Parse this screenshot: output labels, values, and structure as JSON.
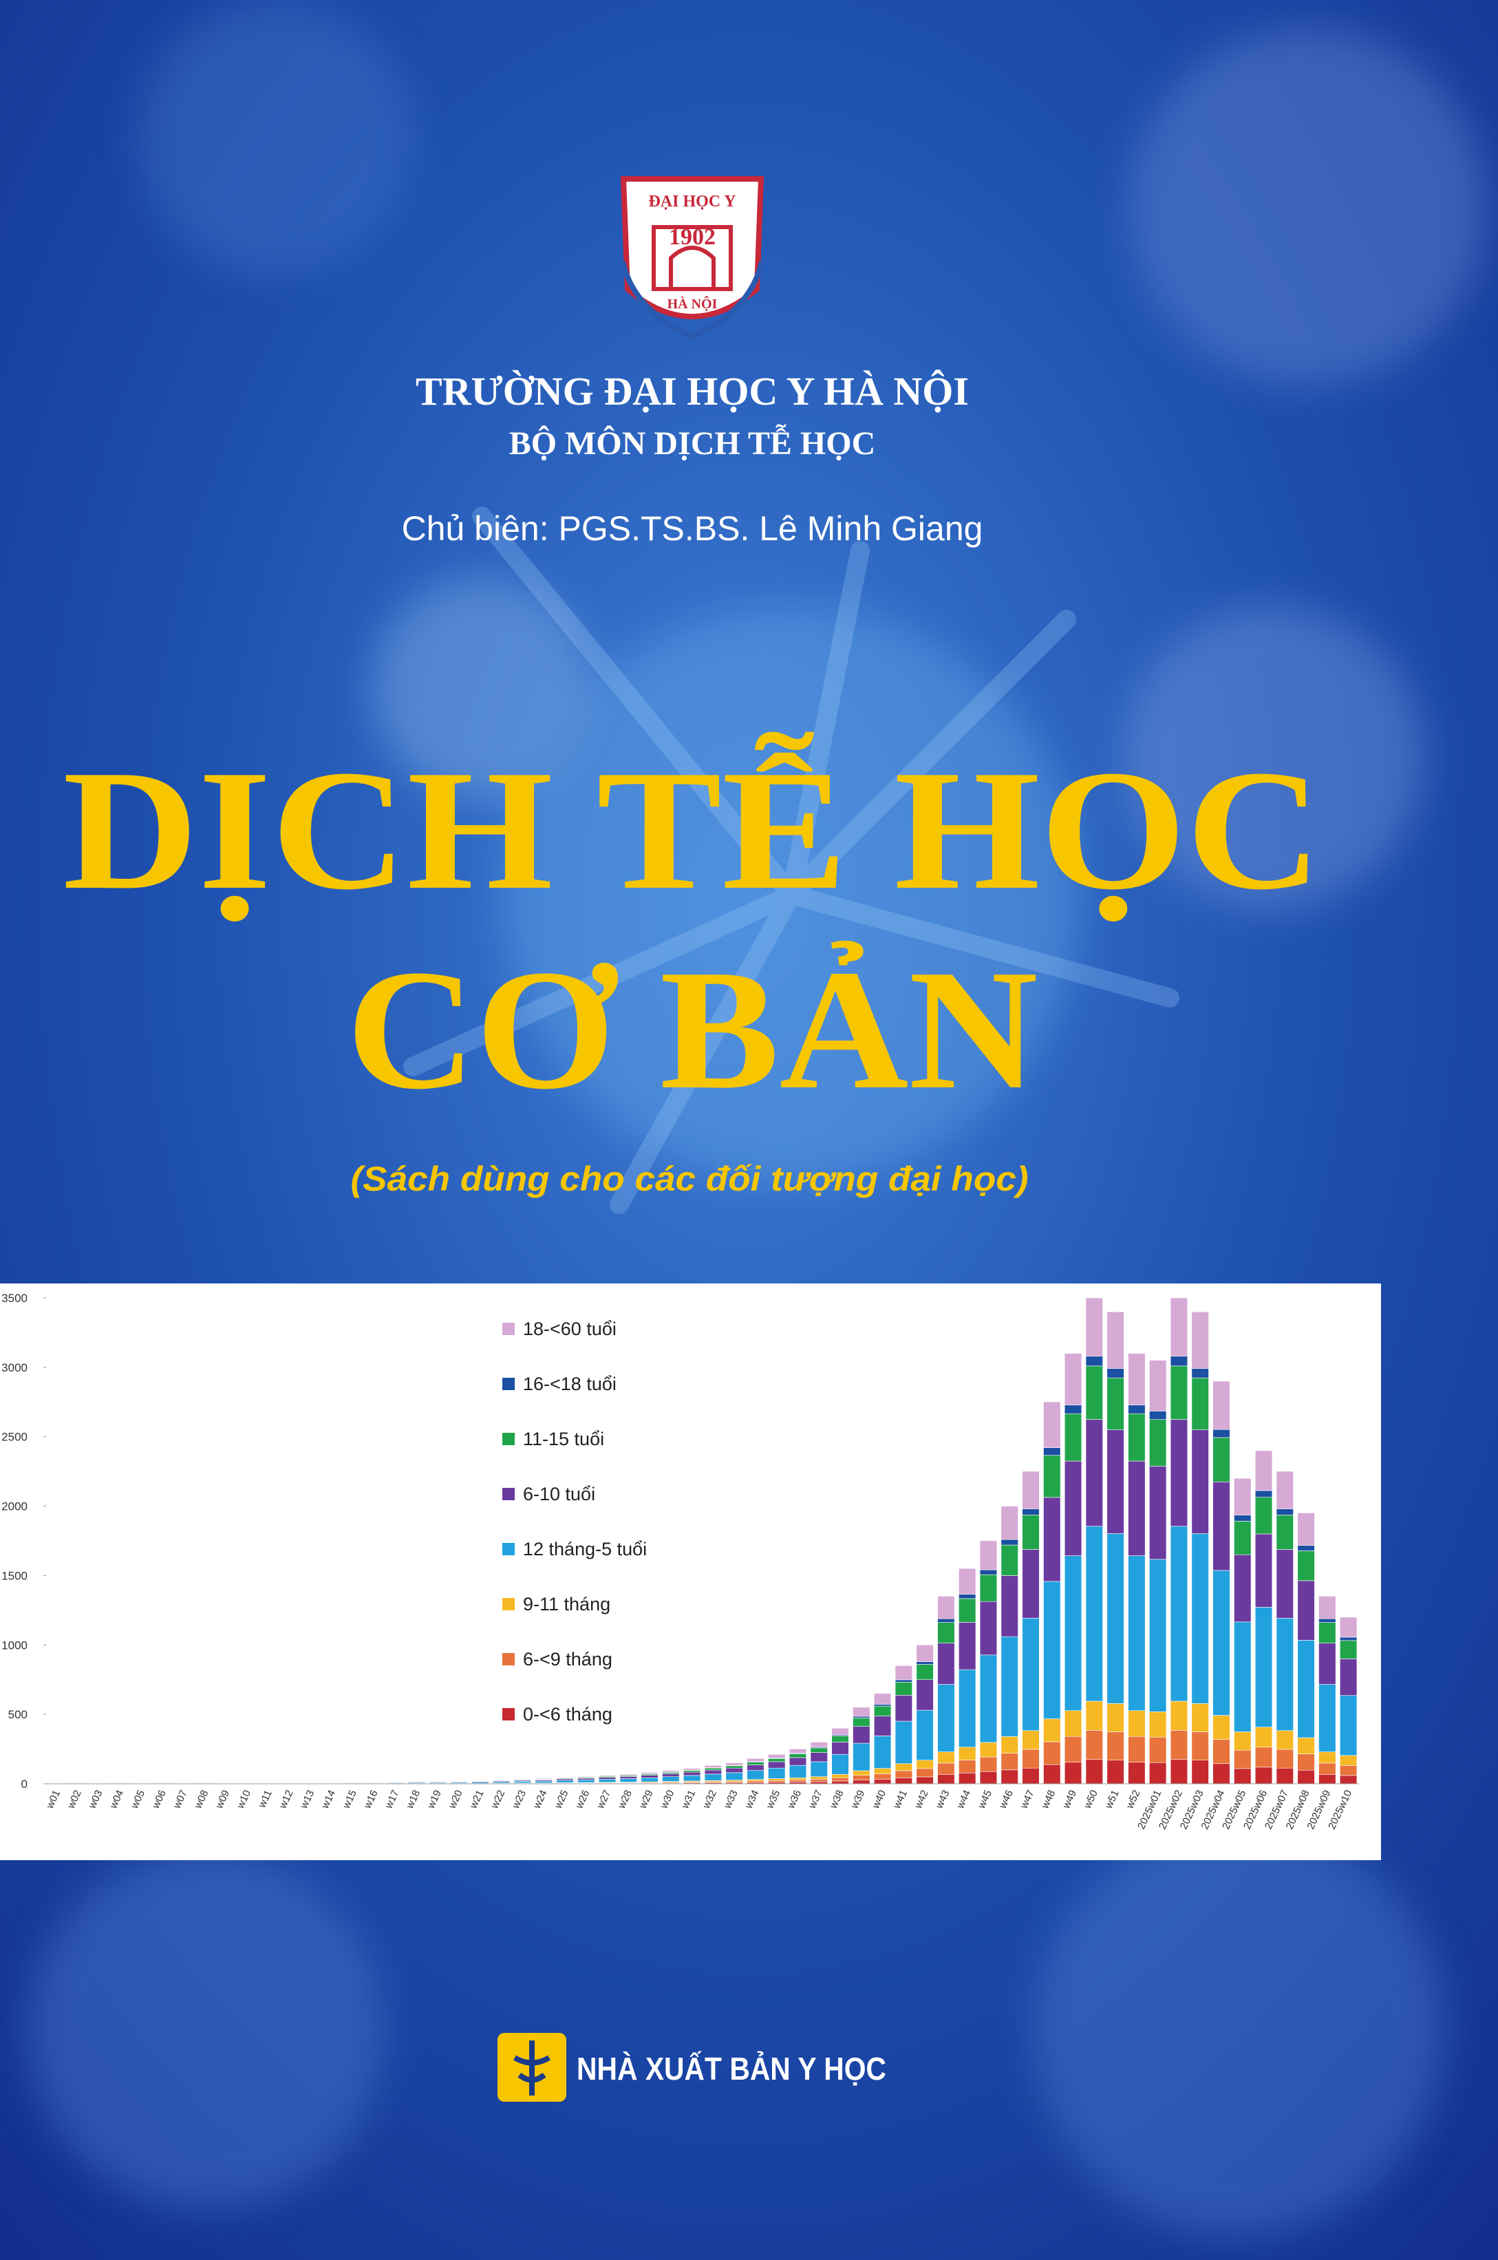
{
  "header": {
    "logo_top": "ĐẠI HỌC Y",
    "logo_year": "1902",
    "logo_bottom": "HÀ NỘI",
    "institution": "TRƯỜNG ĐẠI HỌC Y HÀ NỘI",
    "department": "BỘ MÔN DỊCH TỄ HỌC",
    "editor": "Chủ biên: PGS.TS.BS. Lê Minh Giang"
  },
  "title": {
    "line1": "DỊCH TỄ HỌC",
    "line2": "CƠ BẢN",
    "subtitle": "(Sách dùng cho các đối tượng đại học)"
  },
  "publisher": "NHÀ XUẤT BẢN Y HỌC",
  "chart_data": {
    "type": "stacked_bar",
    "categories": [
      "w01",
      "w02",
      "w03",
      "w04",
      "w05",
      "w06",
      "w07",
      "w08",
      "w09",
      "w10",
      "w11",
      "w12",
      "w13",
      "w14",
      "w15",
      "w16",
      "w17",
      "w18",
      "w19",
      "w20",
      "w21",
      "w22",
      "w23",
      "w24",
      "w25",
      "w26",
      "w27",
      "w28",
      "w29",
      "w30",
      "w31",
      "w32",
      "w33",
      "w34",
      "w35",
      "w36",
      "w37",
      "w38",
      "w39",
      "w40",
      "w41",
      "w42",
      "w43",
      "w44",
      "w45",
      "w46",
      "w47",
      "w48",
      "w49",
      "w50",
      "w51",
      "w52",
      "2025w01",
      "2025w02",
      "2025w03",
      "2025w04",
      "2025w05",
      "2025w06",
      "2025w07",
      "2025w08",
      "2025w09",
      "2025w10"
    ],
    "ylim": [
      0,
      3500
    ],
    "yticks": [
      0,
      500,
      1000,
      1500,
      2000,
      2500,
      3000,
      3500
    ],
    "series": [
      {
        "name": "0-<6 tháng",
        "color": "#c62a2f",
        "values": [
          0,
          0,
          0,
          0,
          0,
          0,
          0,
          0,
          0,
          0,
          0,
          0,
          0,
          0,
          1,
          1,
          1,
          1,
          1,
          1,
          1,
          1,
          2,
          2,
          2,
          3,
          3,
          4,
          4,
          5,
          6,
          7,
          8,
          9,
          11,
          13,
          15,
          20,
          28,
          33,
          43,
          50,
          68,
          78,
          88,
          100,
          113,
          138,
          155,
          175,
          170,
          155,
          153,
          175,
          170,
          145,
          110,
          120,
          113,
          98,
          68,
          60
        ]
      },
      {
        "name": "6-<9 tháng",
        "color": "#e8733b",
        "values": [
          0,
          0,
          0,
          0,
          0,
          0,
          0,
          0,
          0,
          0,
          0,
          0,
          0,
          0,
          1,
          1,
          1,
          1,
          1,
          1,
          1,
          2,
          2,
          2,
          3,
          3,
          4,
          4,
          5,
          6,
          7,
          8,
          9,
          11,
          13,
          15,
          18,
          24,
          33,
          39,
          51,
          60,
          81,
          93,
          105,
          120,
          135,
          165,
          186,
          210,
          204,
          186,
          183,
          210,
          204,
          174,
          132,
          144,
          135,
          117,
          81,
          72
        ]
      },
      {
        "name": "9-11 tháng",
        "color": "#f6b823",
        "values": [
          0,
          0,
          0,
          0,
          0,
          0,
          0,
          0,
          0,
          0,
          0,
          0,
          0,
          0,
          1,
          1,
          1,
          1,
          1,
          1,
          1,
          2,
          2,
          2,
          3,
          3,
          4,
          4,
          5,
          6,
          7,
          8,
          9,
          11,
          13,
          15,
          18,
          24,
          33,
          39,
          51,
          60,
          81,
          93,
          105,
          120,
          135,
          165,
          186,
          210,
          204,
          186,
          183,
          210,
          204,
          174,
          132,
          144,
          135,
          117,
          81,
          72
        ]
      },
      {
        "name": "12 tháng-5 tuổi",
        "color": "#21a2de",
        "values": [
          1,
          2,
          1,
          2,
          1,
          2,
          1,
          2,
          2,
          2,
          2,
          2,
          2,
          3,
          4,
          4,
          5,
          6,
          6,
          7,
          9,
          10,
          12,
          14,
          16,
          19,
          22,
          25,
          29,
          34,
          40,
          47,
          54,
          65,
          76,
          90,
          108,
          144,
          198,
          234,
          306,
          360,
          486,
          558,
          630,
          720,
          810,
          990,
          1116,
          1260,
          1224,
          1116,
          1098,
          1260,
          1224,
          1044,
          792,
          864,
          810,
          702,
          486,
          432
        ]
      },
      {
        "name": "6-10 tuổi",
        "color": "#6b3a9f",
        "values": [
          1,
          1,
          1,
          1,
          1,
          1,
          1,
          1,
          1,
          2,
          1,
          1,
          1,
          2,
          2,
          3,
          3,
          4,
          4,
          4,
          5,
          6,
          7,
          8,
          10,
          11,
          13,
          15,
          18,
          21,
          24,
          29,
          33,
          40,
          46,
          55,
          66,
          88,
          121,
          143,
          187,
          220,
          297,
          341,
          385,
          440,
          495,
          605,
          682,
          770,
          748,
          682,
          671,
          770,
          748,
          638,
          484,
          528,
          495,
          429,
          297,
          264
        ]
      },
      {
        "name": "11-15 tuổi",
        "color": "#20a54b",
        "values": [
          0,
          0,
          0,
          0,
          0,
          0,
          0,
          0,
          0,
          0,
          1,
          1,
          1,
          1,
          1,
          1,
          2,
          2,
          2,
          2,
          3,
          3,
          4,
          4,
          5,
          6,
          7,
          8,
          9,
          10,
          12,
          14,
          17,
          20,
          23,
          28,
          33,
          44,
          61,
          72,
          94,
          110,
          149,
          171,
          193,
          220,
          248,
          303,
          341,
          385,
          374,
          341,
          336,
          385,
          374,
          319,
          242,
          264,
          248,
          215,
          149,
          132
        ]
      },
      {
        "name": "16-<18 tuổi",
        "color": "#1b50a2",
        "values": [
          0,
          0,
          0,
          0,
          0,
          0,
          0,
          0,
          0,
          0,
          0,
          0,
          0,
          0,
          0,
          0,
          0,
          0,
          0,
          0,
          0,
          1,
          1,
          1,
          1,
          1,
          1,
          1,
          2,
          2,
          2,
          3,
          3,
          4,
          4,
          5,
          6,
          8,
          11,
          13,
          17,
          20,
          27,
          31,
          35,
          40,
          45,
          55,
          62,
          70,
          68,
          62,
          61,
          70,
          68,
          58,
          44,
          48,
          45,
          39,
          27,
          24
        ]
      },
      {
        "name": "18-<60 tuổi",
        "color": "#d7a9d5",
        "values": [
          0,
          0,
          0,
          0,
          0,
          0,
          0,
          0,
          1,
          1,
          1,
          1,
          1,
          1,
          1,
          1,
          1,
          2,
          2,
          2,
          3,
          3,
          4,
          5,
          5,
          6,
          7,
          8,
          10,
          11,
          13,
          16,
          18,
          22,
          25,
          30,
          36,
          48,
          66,
          78,
          102,
          120,
          162,
          186,
          210,
          240,
          270,
          330,
          372,
          420,
          408,
          372,
          366,
          420,
          408,
          348,
          264,
          288,
          270,
          234,
          162,
          144
        ]
      }
    ]
  }
}
